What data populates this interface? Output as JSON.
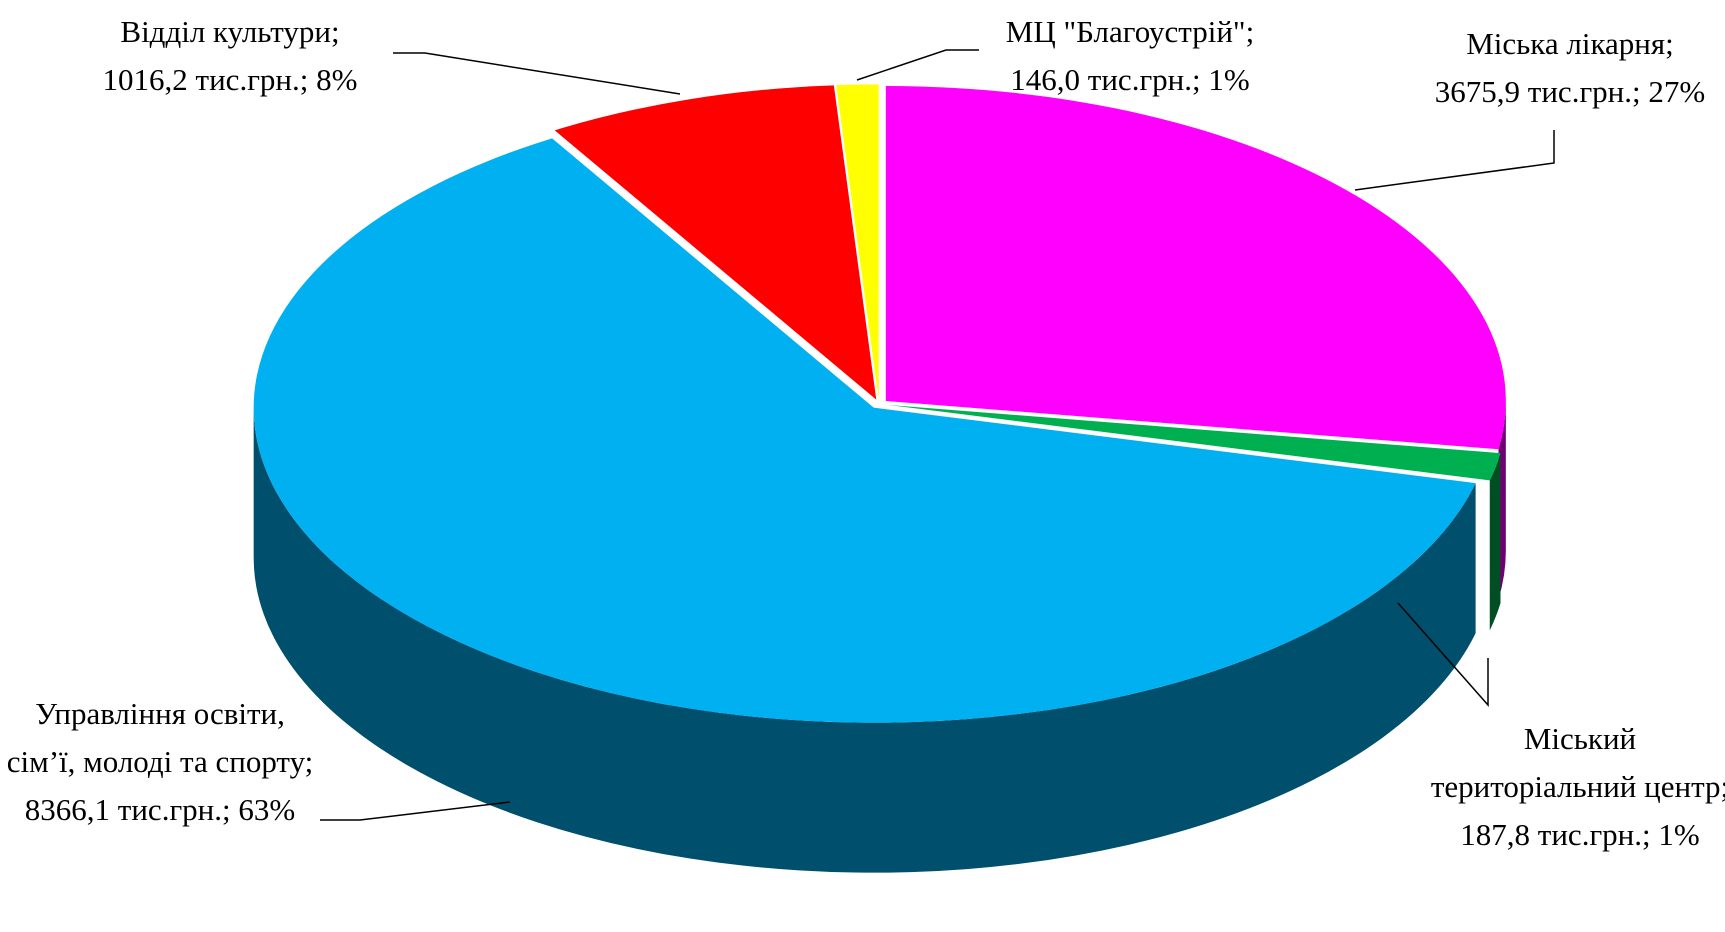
{
  "chart_data": {
    "type": "pie3d",
    "categories": [
      "Міська лікарня;",
      "Міський територіальний центр;",
      "Управління освіти, сім’ї, молоді та спорту;",
      "Відділ культури;",
      "МЦ \"Благоустрій\";"
    ],
    "values": [
      3675.9,
      187.8,
      8366.1,
      1016.2,
      146.0
    ],
    "value_labels": [
      "3675,9 тис.грн.; 27%",
      "187,8 тис.грн.; 1%",
      "8366,1 тис.грн.; 63%",
      "1016,2 тис.грн.; 8%",
      "146,0 тис.грн.; 1%"
    ],
    "colors": [
      "#ff00ff",
      "#00b050",
      "#00b0f0",
      "#ff0000",
      "#ffff00"
    ]
  }
}
